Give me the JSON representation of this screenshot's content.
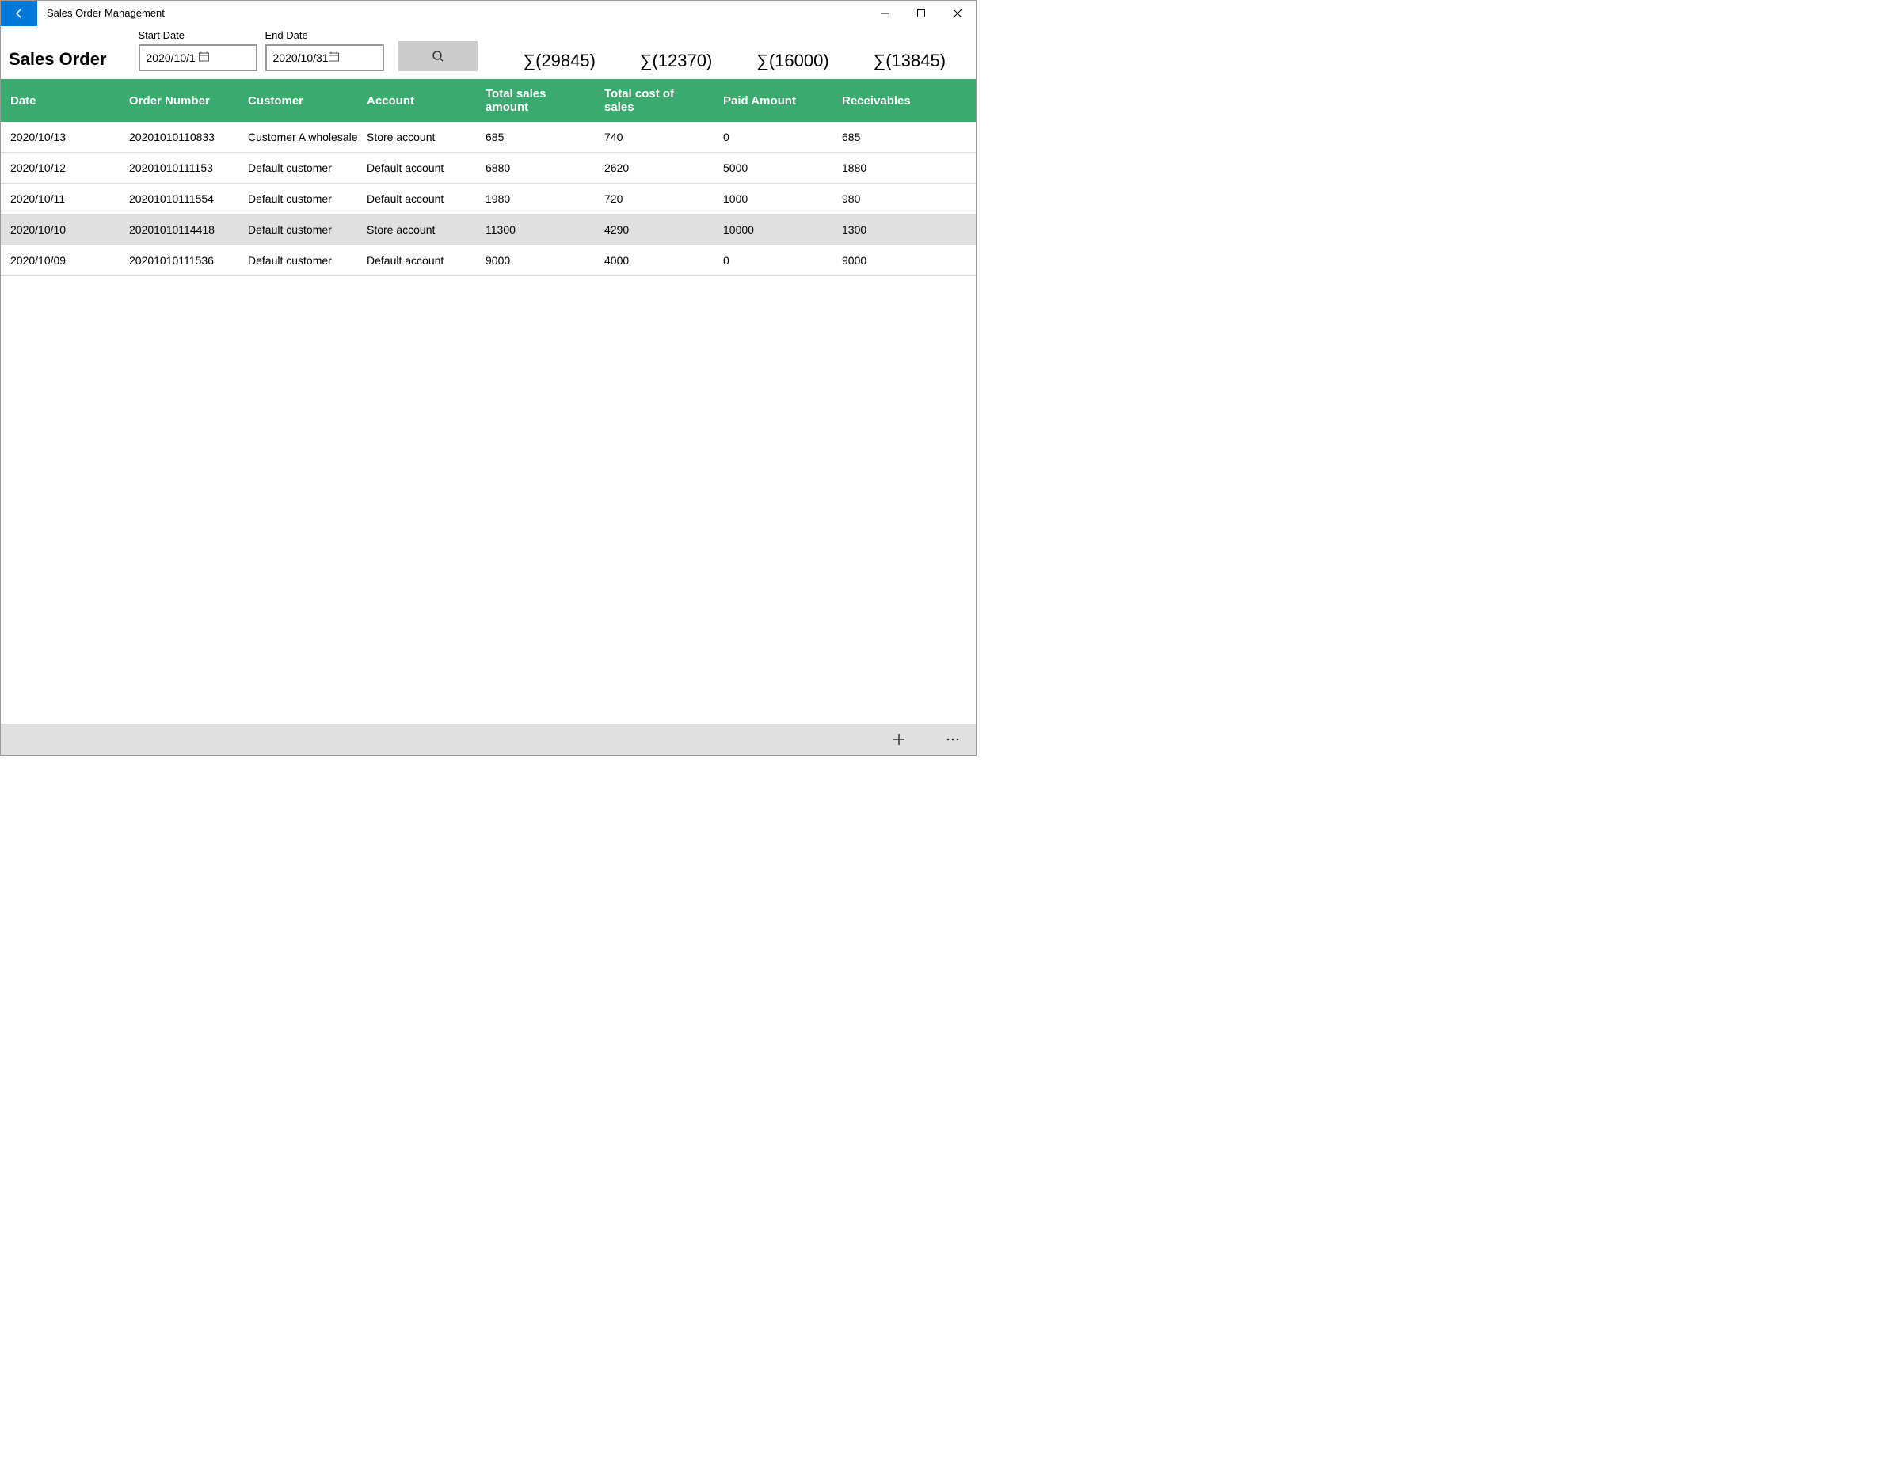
{
  "window": {
    "title": "Sales Order Management"
  },
  "page": {
    "title": "Sales Order"
  },
  "filters": {
    "start_date_label": "Start Date",
    "start_date_value": "2020/10/1",
    "end_date_label": "End Date",
    "end_date_value": "2020/10/31"
  },
  "totals": {
    "total_sales": "∑(29845)",
    "total_cost": "∑(12370)",
    "paid_amount": "∑(16000)",
    "receivables": "∑(13845)"
  },
  "table": {
    "headers": {
      "date": "Date",
      "order_number": "Order Number",
      "customer": "Customer",
      "account": "Account",
      "total_sales": "Total sales amount",
      "total_cost": "Total cost of sales",
      "paid": "Paid Amount",
      "receivables": "Receivables"
    },
    "header_bg_color": "#3aaa6f",
    "header_text_color": "#ffffff",
    "row_highlight_color": "#e0e0e0",
    "rows": [
      {
        "date": "2020/10/13",
        "order_number": "20201010110833",
        "customer": "Customer A wholesale p",
        "account": "Store account",
        "total_sales": "685",
        "total_cost": "740",
        "paid": "0",
        "receivables": "685",
        "highlight": false
      },
      {
        "date": "2020/10/12",
        "order_number": "20201010111153",
        "customer": "Default customer",
        "account": "Default account",
        "total_sales": "6880",
        "total_cost": "2620",
        "paid": "5000",
        "receivables": "1880",
        "highlight": false
      },
      {
        "date": "2020/10/11",
        "order_number": "20201010111554",
        "customer": "Default customer",
        "account": "Default account",
        "total_sales": "1980",
        "total_cost": "720",
        "paid": "1000",
        "receivables": "980",
        "highlight": false
      },
      {
        "date": "2020/10/10",
        "order_number": "20201010114418",
        "customer": "Default customer",
        "account": "Store account",
        "total_sales": "11300",
        "total_cost": "4290",
        "paid": "10000",
        "receivables": "1300",
        "highlight": true
      },
      {
        "date": "2020/10/09",
        "order_number": "20201010111536",
        "customer": "Default customer",
        "account": "Default account",
        "total_sales": "9000",
        "total_cost": "4000",
        "paid": "0",
        "receivables": "9000",
        "highlight": false
      }
    ]
  },
  "colors": {
    "accent_blue": "#0078d7",
    "header_green": "#3aaa6f",
    "button_gray": "#cccccc",
    "bottombar_gray": "#e0e0e0"
  }
}
